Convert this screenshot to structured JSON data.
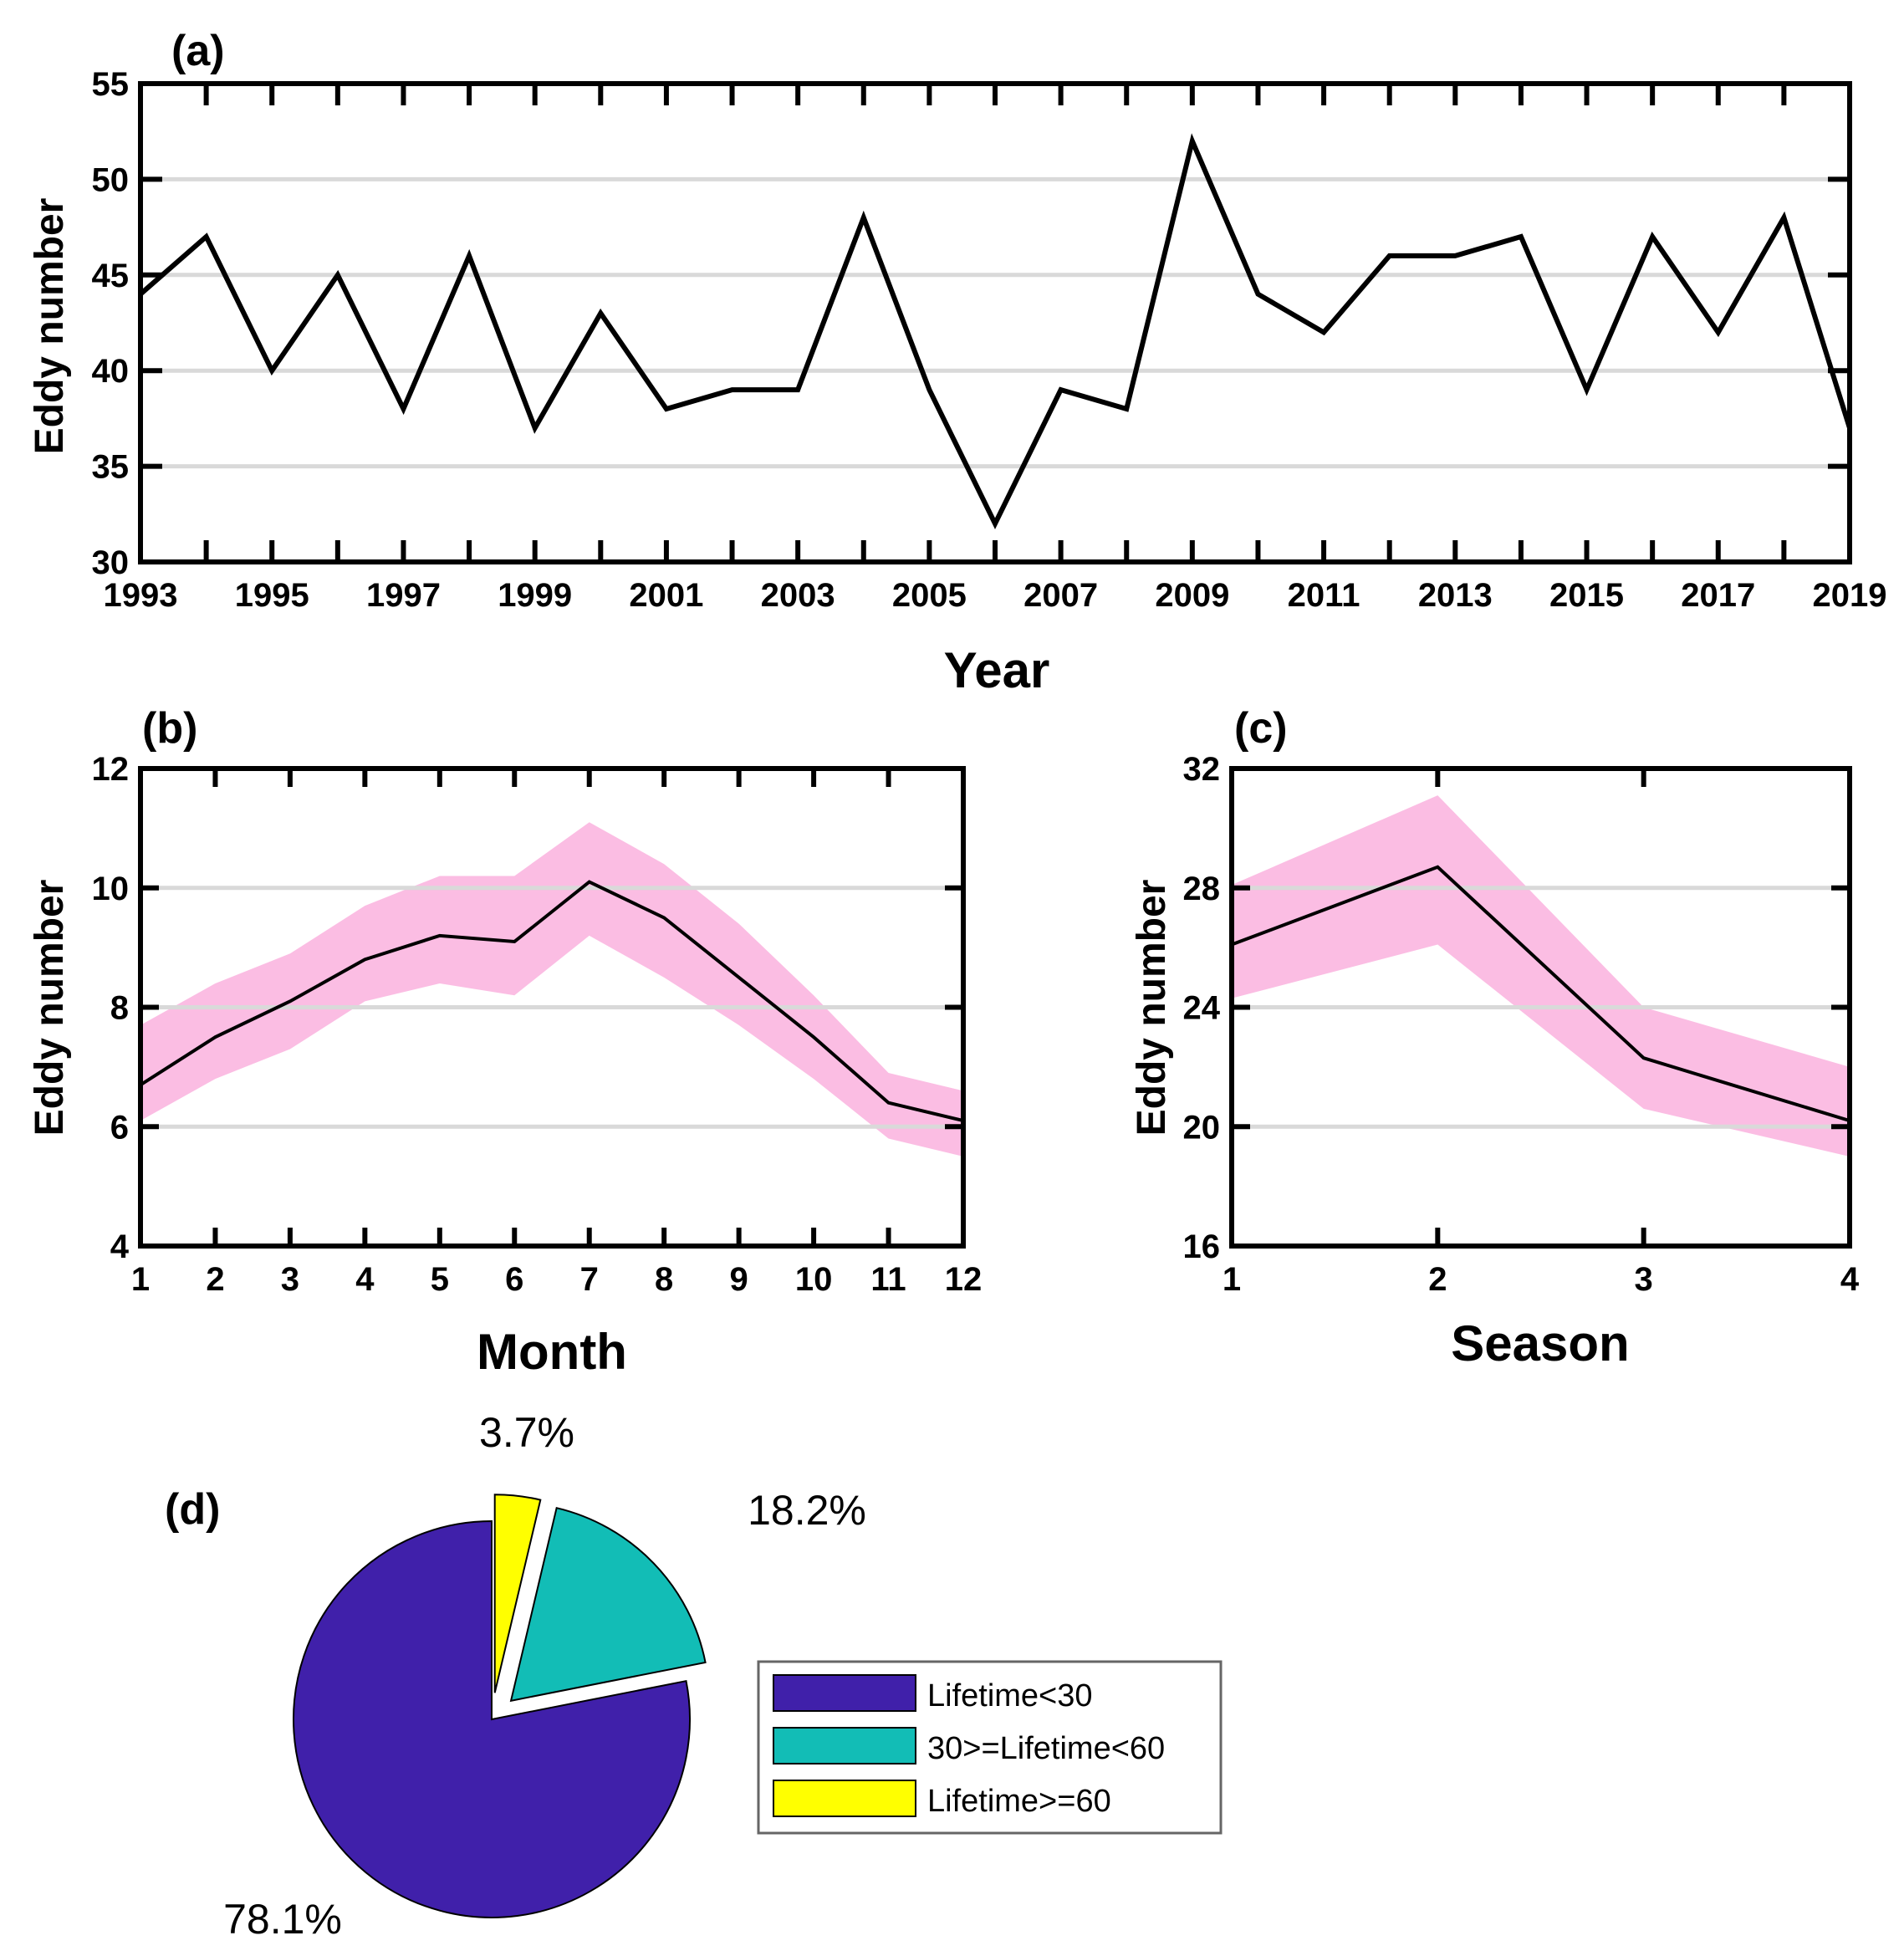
{
  "chart_data": [
    {
      "panel": "(a)",
      "type": "line",
      "x": [
        1993,
        1994,
        1995,
        1996,
        1997,
        1998,
        1999,
        2000,
        2001,
        2002,
        2003,
        2004,
        2005,
        2006,
        2007,
        2008,
        2009,
        2010,
        2011,
        2012,
        2013,
        2014,
        2015,
        2016,
        2017,
        2018,
        2019
      ],
      "values": [
        44,
        47,
        40,
        45,
        38,
        46,
        37,
        43,
        38,
        39,
        39,
        48,
        39,
        32,
        39,
        38,
        52,
        44,
        42,
        46,
        46,
        47,
        39,
        47,
        42,
        48,
        37
      ],
      "xticks": [
        "1993",
        "1995",
        "1997",
        "1999",
        "2001",
        "2003",
        "2005",
        "2007",
        "2009",
        "2011",
        "2013",
        "2015",
        "2017",
        "2019"
      ],
      "xtick_values": [
        1993,
        1995,
        1997,
        1999,
        2001,
        2003,
        2005,
        2007,
        2009,
        2011,
        2013,
        2015,
        2017,
        2019
      ],
      "yticks": [
        "30",
        "35",
        "40",
        "45",
        "50",
        "55"
      ],
      "ytick_values": [
        30,
        35,
        40,
        45,
        50,
        55
      ],
      "xlim": [
        1993,
        2019
      ],
      "ylim": [
        30,
        55
      ],
      "xlabel": "Year",
      "ylabel": "Eddy number",
      "grid": "horizontal",
      "line_color": "#000000"
    },
    {
      "panel": "(b)",
      "type": "line",
      "x": [
        1,
        2,
        3,
        4,
        5,
        6,
        7,
        8,
        9,
        10,
        11,
        12
      ],
      "values": [
        6.7,
        7.5,
        8.1,
        8.8,
        9.2,
        9.1,
        10.1,
        9.5,
        8.5,
        7.5,
        6.4,
        6.1
      ],
      "upper": [
        7.7,
        8.4,
        8.9,
        9.7,
        10.2,
        10.2,
        11.1,
        10.4,
        9.4,
        8.2,
        6.9,
        6.6
      ],
      "lower": [
        6.1,
        6.8,
        7.3,
        8.1,
        8.4,
        8.2,
        9.2,
        8.5,
        7.7,
        6.8,
        5.8,
        5.5
      ],
      "xticks": [
        "1",
        "2",
        "3",
        "4",
        "5",
        "6",
        "7",
        "8",
        "9",
        "10",
        "11",
        "12"
      ],
      "xtick_values": [
        1,
        2,
        3,
        4,
        5,
        6,
        7,
        8,
        9,
        10,
        11,
        12
      ],
      "yticks": [
        "4",
        "6",
        "8",
        "10",
        "12"
      ],
      "ytick_values": [
        4,
        6,
        8,
        10,
        12
      ],
      "xlim": [
        1,
        12
      ],
      "ylim": [
        4,
        12
      ],
      "xlabel": "Month",
      "ylabel": "Eddy number",
      "grid": "horizontal",
      "line_color": "#000000",
      "band_color": "#fbbde3"
    },
    {
      "panel": "(c)",
      "type": "line",
      "x": [
        1,
        2,
        3,
        4
      ],
      "values": [
        26.1,
        28.7,
        22.3,
        20.2
      ],
      "upper": [
        28.1,
        31.1,
        24.0,
        22.0
      ],
      "lower": [
        24.3,
        26.1,
        20.6,
        19.0
      ],
      "xticks": [
        "1",
        "2",
        "3",
        "4"
      ],
      "xtick_values": [
        1,
        2,
        3,
        4
      ],
      "yticks": [
        "16",
        "20",
        "24",
        "28",
        "32"
      ],
      "ytick_values": [
        16,
        20,
        24,
        28,
        32
      ],
      "xlim": [
        1,
        4
      ],
      "ylim": [
        16,
        32
      ],
      "xlabel": "Season",
      "ylabel": "Eddy number",
      "grid": "horizontal",
      "line_color": "#000000",
      "band_color": "#fbbde3"
    },
    {
      "panel": "(d)",
      "type": "pie",
      "labels": [
        "Lifetime<30",
        "30>=Lifetime<60",
        "Lifetime>=60"
      ],
      "values": [
        78.1,
        18.2,
        3.7
      ],
      "percent_labels": [
        "78.1%",
        "18.2%",
        "3.7%"
      ],
      "colors": [
        "#4020aa",
        "#12bdb6",
        "#ffff00"
      ],
      "exploded": [
        false,
        true,
        true
      ],
      "legend": "right"
    }
  ]
}
